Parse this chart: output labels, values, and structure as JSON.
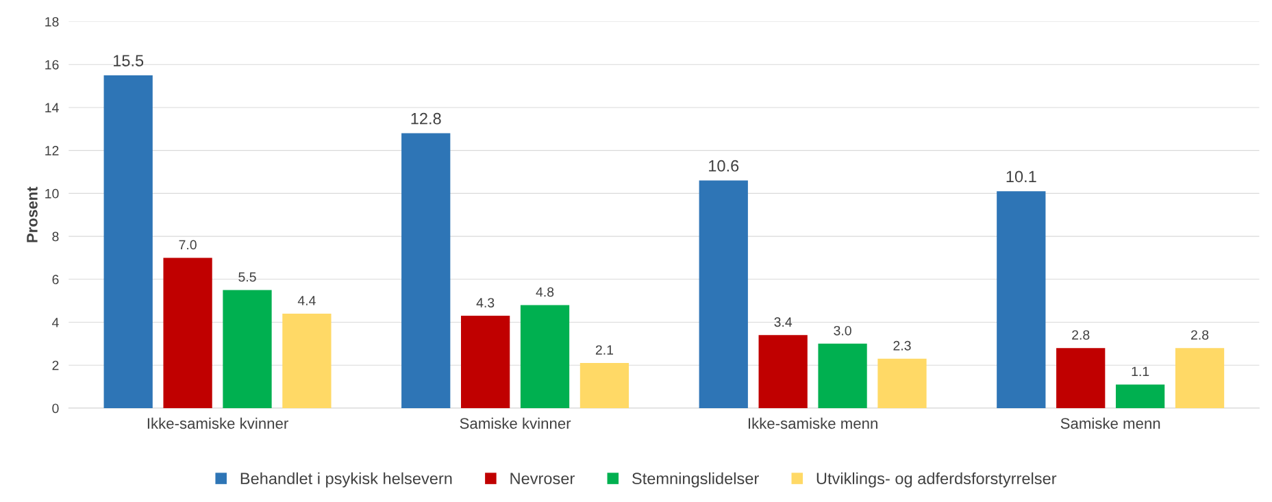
{
  "chart_data": {
    "type": "bar",
    "ylabel": "Prosent",
    "categories": [
      "Ikke-samiske kvinner",
      "Samiske kvinner",
      "Ikke-samiske menn",
      "Samiske menn"
    ],
    "series": [
      {
        "name": "Behandlet i psykisk helsevern",
        "color": "#2e75b6",
        "values": [
          15.5,
          12.8,
          10.6,
          10.1
        ],
        "value_labels": [
          "15.5",
          "12.8",
          "10.6",
          "10.1"
        ]
      },
      {
        "name": "Nevroser",
        "color": "#c00000",
        "values": [
          7,
          4.3,
          3.4,
          2.8
        ],
        "value_labels": [
          "7.0",
          "4.3",
          "3.4",
          "2.8"
        ]
      },
      {
        "name": "Stemningslidelser",
        "color": "#00b050",
        "values": [
          5.5,
          4.8,
          3,
          1.1
        ],
        "value_labels": [
          "5.5",
          "4.8",
          "3.0",
          "1.1"
        ]
      },
      {
        "name": "Utviklings- og adferdsforstyrrelser",
        "color": "#ffd966",
        "values": [
          4.4,
          2.1,
          2.3,
          2.8
        ],
        "value_labels": [
          "4.4",
          "2.1",
          "2.3",
          "2.8"
        ]
      }
    ],
    "ylim": [
      0,
      18
    ],
    "yticks": [
      0,
      2,
      4,
      6,
      8,
      10,
      12,
      14,
      16,
      18
    ],
    "grid": "y",
    "legend": "bottom"
  }
}
